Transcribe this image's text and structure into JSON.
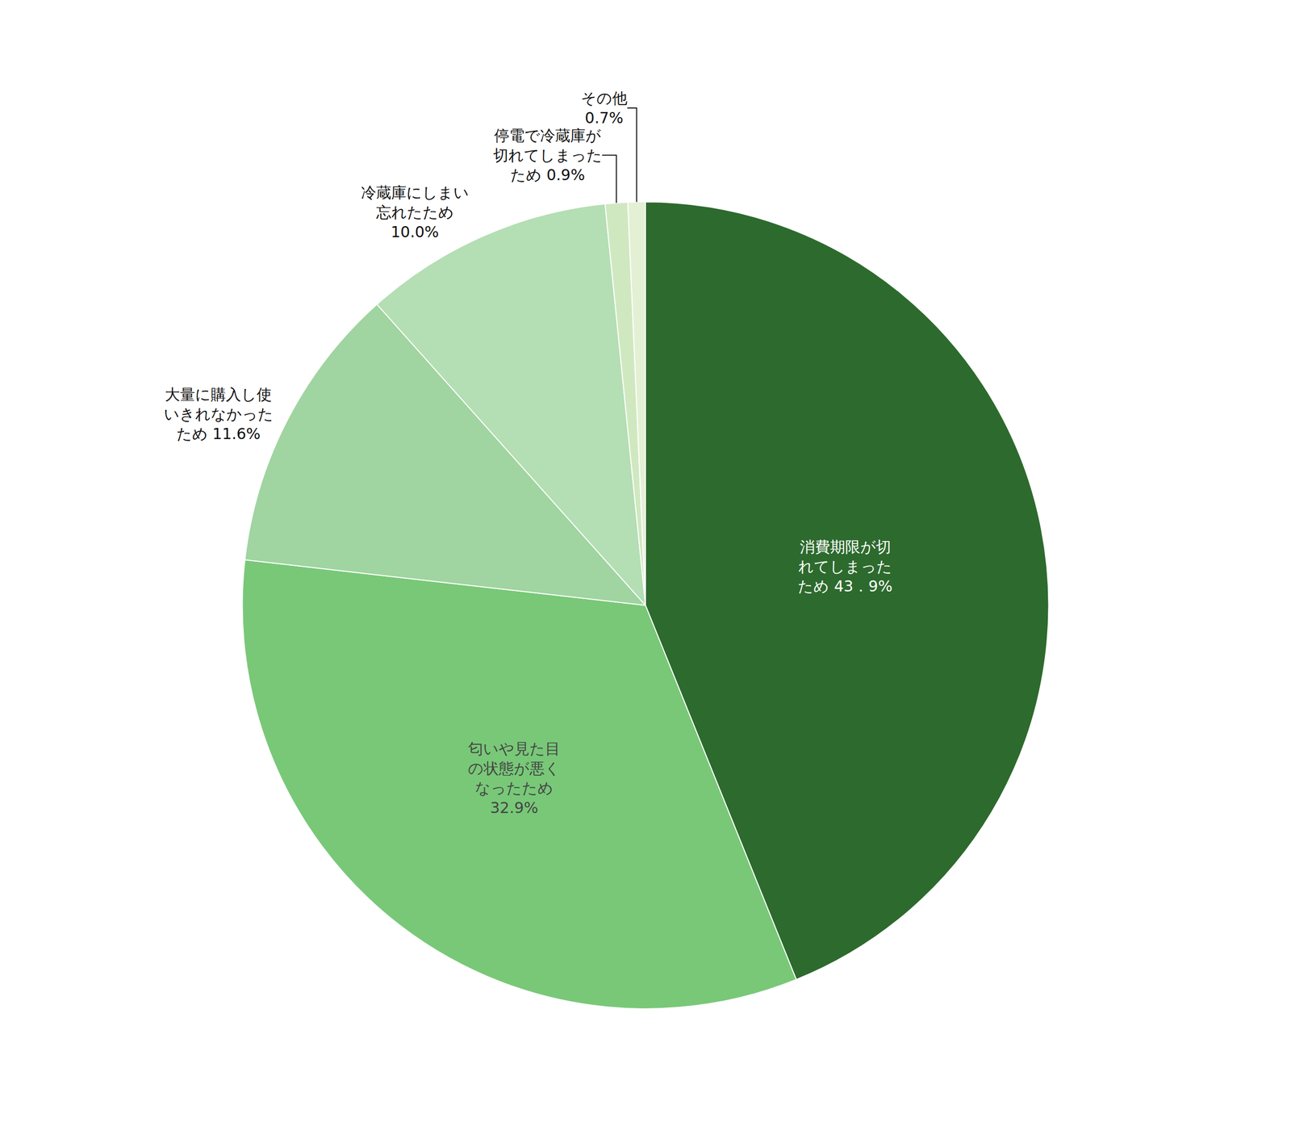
{
  "chart_data": {
    "type": "pie",
    "categories": [
      "消費期限が切\nれてしまった\nため 43．9%",
      "匂いや見た目\nの状態が悪く\nなったため\n32.9%",
      "大量に購入し使\nいきれなかった\nため 11.6%",
      "冷蔵庫にしまい\n忘れたため\n10.0%",
      "停電で冷蔵庫が\n切れてしまった\nため 0.9%",
      "その他\n0.7%"
    ],
    "values": [
      43.9,
      32.9,
      11.6,
      10.0,
      0.9,
      0.7
    ],
    "colors": [
      "#2d6a2d",
      "#78c878",
      "#a0d4a0",
      "#b4deb4",
      "#d0e8c0",
      "#e4f0d4"
    ]
  }
}
